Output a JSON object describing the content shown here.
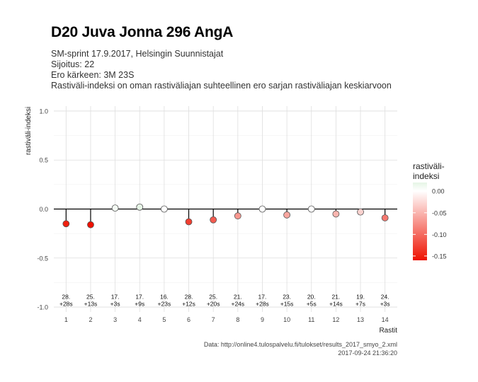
{
  "title": "D20 Juva Jonna 296 AngA",
  "subtitle": {
    "line1": "SM-sprint 17.9.2017, Helsingin Suunnistajat",
    "line2": "Sijoitus: 22",
    "line3": "Ero kärkeen: 3M 23S",
    "line4": "Rastiväli-indeksi on oman rastiväliajan suhteellinen ero sarjan rastiväliajan keskiarvoon"
  },
  "caption": {
    "source": "Data: http://online4.tulospalvelu.fi/tulokset/results_2017_smyo_2.xml",
    "timestamp": "2017-09-24 21:36:20"
  },
  "chart_data": {
    "type": "scatter",
    "xlabel": "Rastit",
    "ylabel": "rastiväli-indeksi",
    "ylim": [
      -1.05,
      1.05
    ],
    "xlim": [
      0.5,
      14.5
    ],
    "yticks": [
      -1.0,
      -0.5,
      0.0,
      0.5,
      1.0
    ],
    "ytick_labels": [
      "-1.0",
      "-0.5",
      "0.0",
      "0.5",
      "1.0"
    ],
    "x": [
      1,
      2,
      3,
      4,
      5,
      6,
      7,
      8,
      9,
      10,
      11,
      12,
      13,
      14
    ],
    "xtick_labels": [
      "1",
      "2",
      "3",
      "4",
      "5",
      "6",
      "7",
      "8",
      "9",
      "10",
      "11",
      "12",
      "13",
      "14"
    ],
    "values": [
      -0.15,
      -0.16,
      0.01,
      0.02,
      0.0,
      -0.13,
      -0.11,
      -0.07,
      0.0,
      -0.06,
      0.0,
      -0.05,
      -0.03,
      -0.09
    ],
    "annotations": [
      {
        "rank": "28.",
        "diff": "+28s"
      },
      {
        "rank": "25.",
        "diff": "+13s"
      },
      {
        "rank": "17.",
        "diff": "+3s"
      },
      {
        "rank": "17.",
        "diff": "+9s"
      },
      {
        "rank": "16.",
        "diff": "+23s"
      },
      {
        "rank": "28.",
        "diff": "+12s"
      },
      {
        "rank": "25.",
        "diff": "+20s"
      },
      {
        "rank": "21.",
        "diff": "+24s"
      },
      {
        "rank": "17.",
        "diff": "+28s"
      },
      {
        "rank": "23.",
        "diff": "+15s"
      },
      {
        "rank": "20.",
        "diff": "+5s"
      },
      {
        "rank": "21.",
        "diff": "+14s"
      },
      {
        "rank": "19.",
        "diff": "+7s"
      },
      {
        "rank": "24.",
        "diff": "+3s"
      }
    ],
    "annotation_y": -0.93,
    "grid": true,
    "legend": {
      "title": "rastiväli-\nindeksi",
      "placement": "right",
      "ticks": [
        0.0,
        -0.05,
        -0.1,
        -0.15
      ],
      "tick_labels": [
        "0.00",
        "-0.05",
        "-0.10",
        "-0.15"
      ],
      "range": [
        -0.16,
        0.02
      ]
    },
    "colors": {
      "high": "#e6f5e6",
      "mid": "#ffffff",
      "low": "#ee1100"
    }
  }
}
